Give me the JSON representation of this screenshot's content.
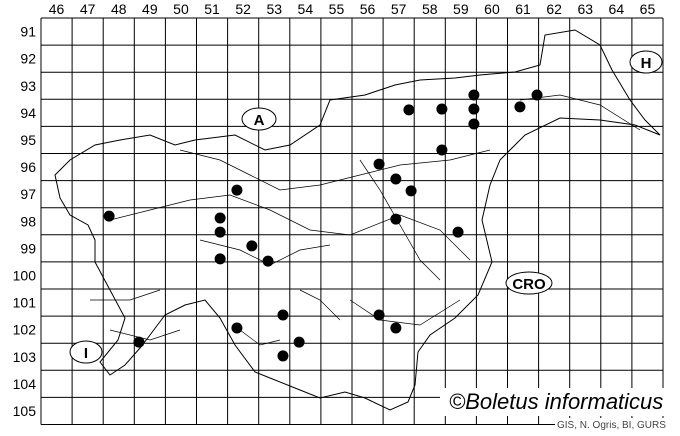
{
  "map": {
    "column_labels": [
      "46",
      "47",
      "48",
      "49",
      "50",
      "51",
      "52",
      "53",
      "54",
      "55",
      "56",
      "57",
      "58",
      "59",
      "60",
      "61",
      "62",
      "63",
      "64",
      "65"
    ],
    "row_labels": [
      "91",
      "92",
      "93",
      "94",
      "95",
      "96",
      "97",
      "98",
      "99",
      "100",
      "101",
      "102",
      "103",
      "104",
      "105"
    ],
    "country_labels": {
      "austria": "A",
      "hungary": "H",
      "croatia": "CRO",
      "italy": "I"
    },
    "dot_color": "#000000",
    "records": [
      {
        "col": 57.83,
        "row": 94.39
      },
      {
        "col": 58.89,
        "row": 94.36
      },
      {
        "col": 59.92,
        "row": 93.84
      },
      {
        "col": 59.92,
        "row": 94.36
      },
      {
        "col": 59.92,
        "row": 94.91
      },
      {
        "col": 61.4,
        "row": 94.28
      },
      {
        "col": 61.95,
        "row": 93.84
      },
      {
        "col": 58.89,
        "row": 95.87
      },
      {
        "col": 56.87,
        "row": 96.39
      },
      {
        "col": 57.41,
        "row": 96.94
      },
      {
        "col": 57.9,
        "row": 97.38
      },
      {
        "col": 57.41,
        "row": 98.42
      },
      {
        "col": 59.41,
        "row": 98.9
      },
      {
        "col": 52.3,
        "row": 97.35
      },
      {
        "col": 51.76,
        "row": 98.38
      },
      {
        "col": 51.76,
        "row": 98.9
      },
      {
        "col": 52.78,
        "row": 99.41
      },
      {
        "col": 51.76,
        "row": 99.89
      },
      {
        "col": 53.3,
        "row": 99.97
      },
      {
        "col": 48.19,
        "row": 98.31
      },
      {
        "col": 53.78,
        "row": 101.96
      },
      {
        "col": 52.3,
        "row": 102.44
      },
      {
        "col": 54.3,
        "row": 102.96
      },
      {
        "col": 53.78,
        "row": 103.47
      },
      {
        "col": 56.87,
        "row": 101.96
      },
      {
        "col": 57.41,
        "row": 102.44
      },
      {
        "col": 49.15,
        "row": 102.96
      }
    ]
  },
  "credit": "©Boletus informaticus",
  "source": "GIS, N. Ogris, BI, GURS"
}
